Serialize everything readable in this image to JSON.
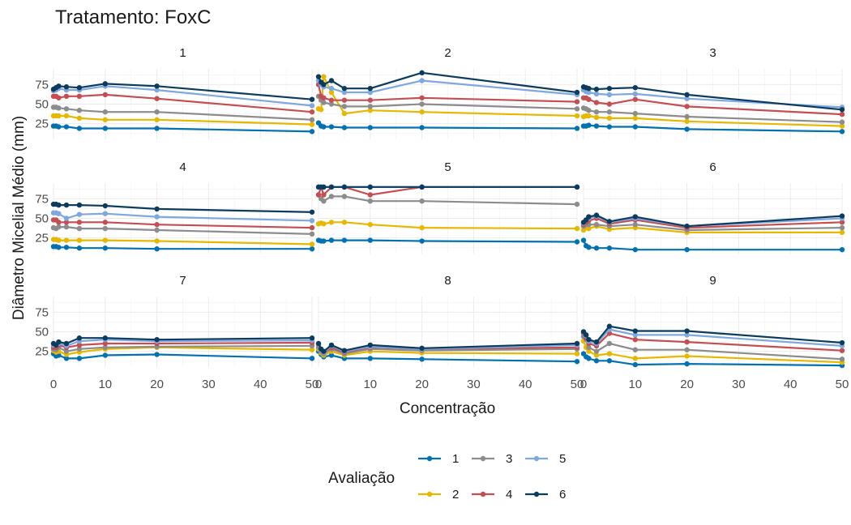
{
  "title": "Tratamento: FoxC",
  "chart_data": {
    "type": "line",
    "title": "Tratamento: FoxC",
    "xlabel": "Concentração",
    "ylabel": "Diâmetro Micelial Médio (mm)",
    "xlim": [
      0,
      50
    ],
    "ylim": [
      5,
      95
    ],
    "x_ticks": [
      0,
      10,
      20,
      30,
      40,
      50
    ],
    "y_ticks": [
      25,
      50,
      75
    ],
    "grid": true,
    "legend": {
      "title": "Avaliação",
      "position": "bottom"
    },
    "x": [
      0,
      0.5,
      1,
      2.5,
      5,
      10,
      20,
      50
    ],
    "series_colors": {
      "1": "#0072B2",
      "2": "#E6B800",
      "3": "#8C8C8C",
      "4": "#C44E52",
      "5": "#7FA7E0",
      "6": "#0B3C5D"
    },
    "panels": [
      {
        "label": "1",
        "series": [
          {
            "name": "1",
            "values": [
              22,
              22,
              21,
              21,
              19,
              19,
              19,
              15
            ]
          },
          {
            "name": "2",
            "values": [
              35,
              35,
              35,
              35,
              32,
              30,
              30,
              24
            ]
          },
          {
            "name": "3",
            "values": [
              46,
              46,
              45,
              44,
              42,
              40,
              40,
              30
            ]
          },
          {
            "name": "4",
            "values": [
              60,
              60,
              58,
              60,
              60,
              62,
              57,
              40
            ]
          },
          {
            "name": "5",
            "values": [
              67,
              68,
              70,
              68,
              68,
              73,
              68,
              48
            ]
          },
          {
            "name": "6",
            "values": [
              69,
              71,
              73,
              72,
              71,
              76,
              73,
              56
            ]
          }
        ]
      },
      {
        "label": "2",
        "series": [
          {
            "name": "1",
            "values": [
              26,
              22,
              21,
              21,
              20,
              20,
              20,
              19
            ]
          },
          {
            "name": "2",
            "values": [
              44,
              43,
              85,
              65,
              38,
              42,
              40,
              35
            ]
          },
          {
            "name": "3",
            "values": [
              60,
              55,
              52,
              50,
              47,
              47,
              50,
              44
            ]
          },
          {
            "name": "4",
            "values": [
              75,
              60,
              58,
              55,
              55,
              55,
              58,
              53
            ]
          },
          {
            "name": "5",
            "values": [
              80,
              75,
              72,
              70,
              65,
              65,
              80,
              62
            ]
          },
          {
            "name": "6",
            "values": [
              85,
              78,
              75,
              80,
              70,
              70,
              90,
              65
            ]
          }
        ]
      },
      {
        "label": "3",
        "series": [
          {
            "name": "1",
            "values": [
              22,
              22,
              23,
              22,
              21,
              21,
              18,
              15
            ]
          },
          {
            "name": "2",
            "values": [
              34,
              35,
              35,
              33,
              32,
              32,
              28,
              22
            ]
          },
          {
            "name": "3",
            "values": [
              45,
              44,
              42,
              40,
              40,
              38,
              34,
              27
            ]
          },
          {
            "name": "4",
            "values": [
              58,
              58,
              56,
              52,
              50,
              56,
              47,
              37
            ]
          },
          {
            "name": "5",
            "values": [
              68,
              66,
              65,
              63,
              62,
              63,
              57,
              46
            ]
          },
          {
            "name": "6",
            "values": [
              72,
              71,
              70,
              69,
              70,
              71,
              62,
              43
            ]
          }
        ]
      },
      {
        "label": "4",
        "series": [
          {
            "name": "1",
            "values": [
              14,
              14,
              13,
              13,
              12,
              12,
              11,
              11
            ]
          },
          {
            "name": "2",
            "values": [
              23,
              23,
              22,
              22,
              22,
              22,
              21,
              17
            ]
          },
          {
            "name": "3",
            "values": [
              38,
              37,
              39,
              39,
              37,
              37,
              35,
              30
            ]
          },
          {
            "name": "4",
            "values": [
              48,
              48,
              45,
              45,
              45,
              45,
              42,
              38
            ]
          },
          {
            "name": "5",
            "values": [
              57,
              57,
              56,
              50,
              55,
              56,
              52,
              47
            ]
          },
          {
            "name": "6",
            "values": [
              68,
              68,
              67,
              67,
              67,
              66,
              62,
              58
            ]
          }
        ]
      },
      {
        "label": "5",
        "series": [
          {
            "name": "1",
            "values": [
              22,
              21,
              21,
              22,
              22,
              22,
              21,
              20
            ]
          },
          {
            "name": "2",
            "values": [
              43,
              44,
              43,
              45,
              45,
              42,
              38,
              37
            ]
          },
          {
            "name": "3",
            "values": [
              80,
              75,
              72,
              78,
              78,
              72,
              72,
              68
            ]
          },
          {
            "name": "4",
            "values": [
              80,
              90,
              80,
              90,
              90,
              80,
              90,
              90
            ]
          },
          {
            "name": "5",
            "values": [
              90,
              90,
              90,
              90,
              90,
              90,
              90,
              90
            ]
          },
          {
            "name": "6",
            "values": [
              90,
              90,
              90,
              90,
              90,
              90,
              90,
              90
            ]
          }
        ]
      },
      {
        "label": "6",
        "series": [
          {
            "name": "1",
            "values": [
              22,
              15,
              13,
              12,
              12,
              10,
              10,
              10
            ]
          },
          {
            "name": "2",
            "values": [
              35,
              38,
              37,
              40,
              36,
              38,
              32,
              32
            ]
          },
          {
            "name": "3",
            "values": [
              40,
              42,
              42,
              42,
              40,
              42,
              35,
              38
            ]
          },
          {
            "name": "4",
            "values": [
              42,
              45,
              47,
              50,
              43,
              48,
              38,
              45
            ]
          },
          {
            "name": "5",
            "values": [
              44,
              48,
              50,
              53,
              45,
              50,
              40,
              50
            ]
          },
          {
            "name": "6",
            "values": [
              45,
              48,
              52,
              54,
              46,
              52,
              40,
              53
            ]
          }
        ]
      },
      {
        "label": "7",
        "series": [
          {
            "name": "1",
            "values": [
              22,
              19,
              20,
              16,
              16,
              20,
              21,
              16
            ]
          },
          {
            "name": "2",
            "values": [
              26,
              24,
              25,
              21,
              24,
              28,
              30,
              27
            ]
          },
          {
            "name": "3",
            "values": [
              28,
              27,
              30,
              25,
              28,
              30,
              31,
              32
            ]
          },
          {
            "name": "4",
            "values": [
              30,
              30,
              33,
              30,
              33,
              35,
              35,
              36
            ]
          },
          {
            "name": "5",
            "values": [
              33,
              33,
              35,
              32,
              38,
              40,
              38,
              39
            ]
          },
          {
            "name": "6",
            "values": [
              35,
              33,
              37,
              35,
              42,
              42,
              40,
              42
            ]
          }
        ]
      },
      {
        "label": "8",
        "series": [
          {
            "name": "1",
            "values": [
              25,
              21,
              18,
              20,
              16,
              16,
              15,
              12
            ]
          },
          {
            "name": "2",
            "values": [
              28,
              23,
              20,
              25,
              20,
              25,
              23,
              22
            ]
          },
          {
            "name": "3",
            "values": [
              30,
              25,
              22,
              28,
              22,
              28,
              26,
              28
            ]
          },
          {
            "name": "4",
            "values": [
              33,
              27,
              24,
              30,
              24,
              30,
              28,
              30
            ]
          },
          {
            "name": "5",
            "values": [
              34,
              27,
              24,
              32,
              25,
              31,
              28,
              33
            ]
          },
          {
            "name": "6",
            "values": [
              35,
              28,
              25,
              33,
              26,
              33,
              29,
              35
            ]
          }
        ]
      },
      {
        "label": "9",
        "series": [
          {
            "name": "1",
            "values": [
              22,
              18,
              16,
              13,
              13,
              8,
              9,
              7
            ]
          },
          {
            "name": "2",
            "values": [
              38,
              30,
              25,
              20,
              22,
              16,
              19,
              11
            ]
          },
          {
            "name": "3",
            "values": [
              44,
              40,
              30,
              25,
              35,
              27,
              27,
              15
            ]
          },
          {
            "name": "4",
            "values": [
              48,
              42,
              35,
              32,
              48,
              40,
              37,
              26
            ]
          },
          {
            "name": "5",
            "values": [
              49,
              45,
              38,
              35,
              53,
              46,
              46,
              32
            ]
          },
          {
            "name": "6",
            "values": [
              50,
              46,
              40,
              37,
              57,
              51,
              51,
              36
            ]
          }
        ]
      }
    ]
  }
}
